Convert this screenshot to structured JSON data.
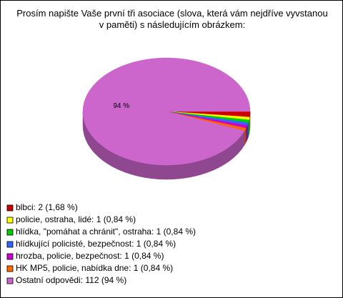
{
  "chart_data": {
    "type": "pie3d",
    "title": "Prosím napište Vaše první tři asociace (slova, která vám nejdříve vyvstanou v paměti) s následujícím obrázkem:",
    "categories": [
      "blbci: 2 (1,68 %)",
      "policie, ostraha, lidé: 1 (0,84 %)",
      "hlídka, \"pomáhat a chránit\", ostraha: 1 (0,84 %)",
      "hlídkující policisté, bezpečnost: 1 (0,84 %)",
      "hrozba, policie, bezpečnost: 1 (0,84 %)",
      "HK MP5, policie, nabídka dne: 1 (0,84 %)",
      "Ostatní odpovědi: 112 (94 %)"
    ],
    "values": [
      1.68,
      0.84,
      0.84,
      0.84,
      0.84,
      0.84,
      94
    ],
    "value_labels": [
      null,
      null,
      null,
      null,
      null,
      null,
      "94 %"
    ],
    "colors": [
      "#cc0000",
      "#ffff00",
      "#00cc00",
      "#3366ff",
      "#cc00cc",
      "#ff6600",
      "#cc66cc"
    ]
  }
}
